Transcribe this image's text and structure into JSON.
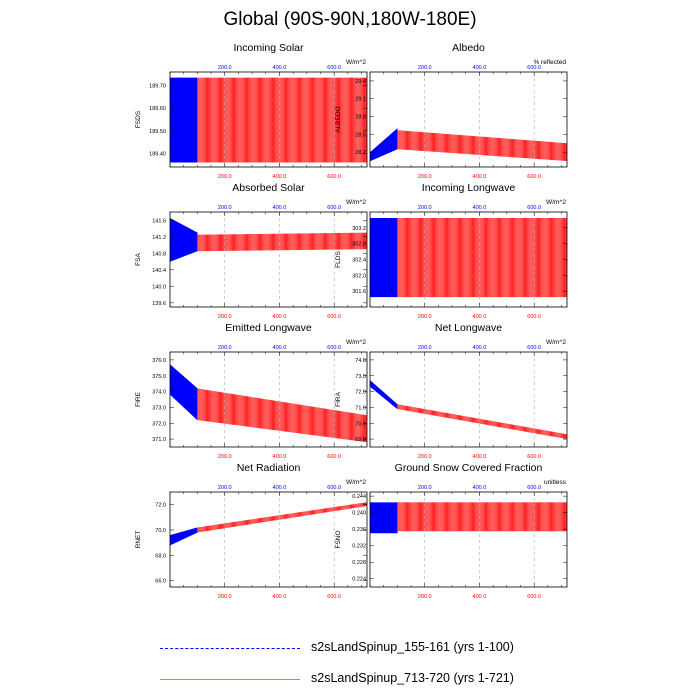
{
  "page": {
    "title": "Global (90S-90N,180W-180E)"
  },
  "legend": [
    {
      "label": "s2sLandSpinup_155-161 (yrs 1-100)",
      "color": "#0000ff",
      "style": "dashed"
    },
    {
      "label": "s2sLandSpinup_713-720 (yrs 1-721)",
      "color": "#ff0000",
      "style": "solid"
    }
  ],
  "chart_data": [
    {
      "type": "line",
      "title": "Incoming Solar",
      "ylabel": "FSDS",
      "units": "W/m^2",
      "xlim": [
        0,
        720
      ],
      "xticks": [
        200,
        400,
        600
      ],
      "xtick_labels": [
        "200.0",
        "400.0",
        "600.0"
      ],
      "ylim": [
        189.34,
        189.76
      ],
      "yticks": [
        189.4,
        189.5,
        189.6,
        189.7
      ],
      "ytick_labels": [
        "189.40",
        "189.50",
        "189.60",
        "189.70"
      ],
      "series": [
        {
          "color": "#0000ff",
          "x_range": [
            1,
            100
          ],
          "band_low": [
            189.36,
            189.36
          ],
          "band_high": [
            189.735,
            189.735
          ]
        },
        {
          "color": "#ff0000",
          "x_range": [
            100,
            721
          ],
          "band_low": [
            189.36,
            189.36
          ],
          "band_high": [
            189.735,
            189.735
          ]
        }
      ]
    },
    {
      "type": "line",
      "title": "Albedo",
      "ylabel": "ALBEDO",
      "units": "% reflected",
      "xlim": [
        0,
        720
      ],
      "xticks": [
        200,
        400,
        600
      ],
      "xtick_labels": [
        "200.0",
        "400.0",
        "600.0"
      ],
      "ylim": [
        27.95,
        29.55
      ],
      "yticks": [
        28.2,
        28.5,
        28.8,
        29.1,
        29.4
      ],
      "ytick_labels": [
        "28.2",
        "28.5",
        "28.8",
        "29.1",
        "29.4"
      ],
      "series": [
        {
          "color": "#0000ff",
          "x_range": [
            1,
            100
          ],
          "band_low": [
            28.05,
            28.25
          ],
          "band_high": [
            28.2,
            28.6
          ]
        },
        {
          "color": "#ff0000",
          "x_range": [
            100,
            721
          ],
          "band_low": [
            28.25,
            28.05
          ],
          "band_high": [
            28.57,
            28.35
          ]
        }
      ]
    },
    {
      "type": "line",
      "title": "Absorbed Solar",
      "ylabel": "FSA",
      "units": "W/m^2",
      "xlim": [
        0,
        720
      ],
      "xticks": [
        200,
        400,
        600
      ],
      "xtick_labels": [
        "200.0",
        "400.0",
        "600.0"
      ],
      "ylim": [
        139.5,
        141.8
      ],
      "yticks": [
        139.6,
        140.0,
        140.4,
        140.8,
        141.2,
        141.6
      ],
      "ytick_labels": [
        "139.6",
        "140.0",
        "140.4",
        "140.8",
        "141.2",
        "141.6"
      ],
      "series": [
        {
          "color": "#0000ff",
          "x_range": [
            1,
            100
          ],
          "band_low": [
            140.6,
            140.85
          ],
          "band_high": [
            141.65,
            141.3
          ]
        },
        {
          "color": "#ff0000",
          "x_range": [
            100,
            721
          ],
          "band_low": [
            140.85,
            140.9
          ],
          "band_high": [
            141.25,
            141.3
          ]
        }
      ]
    },
    {
      "type": "line",
      "title": "Incoming Longwave",
      "ylabel": "FLDS",
      "units": "W/m^2",
      "xlim": [
        0,
        720
      ],
      "xticks": [
        200,
        400,
        600
      ],
      "xtick_labels": [
        "200.0",
        "400.0",
        "600.0"
      ],
      "ylim": [
        301.2,
        303.6
      ],
      "yticks": [
        301.6,
        302.0,
        302.4,
        302.8,
        303.2
      ],
      "ytick_labels": [
        "301.6",
        "302.0",
        "302.4",
        "302.8",
        "303.2"
      ],
      "series": [
        {
          "color": "#0000ff",
          "x_range": [
            1,
            100
          ],
          "band_low": [
            301.45,
            301.45
          ],
          "band_high": [
            303.45,
            303.45
          ]
        },
        {
          "color": "#ff0000",
          "x_range": [
            100,
            721
          ],
          "band_low": [
            301.45,
            301.45
          ],
          "band_high": [
            303.45,
            303.45
          ]
        }
      ]
    },
    {
      "type": "line",
      "title": "Emitted Longwave",
      "ylabel": "FIRE",
      "units": "W/m^2",
      "xlim": [
        0,
        720
      ],
      "xticks": [
        200,
        400,
        600
      ],
      "xtick_labels": [
        "200.0",
        "400.0",
        "600.0"
      ],
      "ylim": [
        370.5,
        376.5
      ],
      "yticks": [
        371.0,
        372.0,
        373.0,
        374.0,
        375.0,
        376.0
      ],
      "ytick_labels": [
        "371.0",
        "372.0",
        "373.0",
        "374.0",
        "375.0",
        "376.0"
      ],
      "series": [
        {
          "color": "#0000ff",
          "x_range": [
            1,
            100
          ],
          "band_low": [
            373.8,
            372.2
          ],
          "band_high": [
            375.7,
            374.2
          ]
        },
        {
          "color": "#ff0000",
          "x_range": [
            100,
            721
          ],
          "band_low": [
            372.2,
            370.8
          ],
          "band_high": [
            374.2,
            372.5
          ]
        }
      ]
    },
    {
      "type": "line",
      "title": "Net Longwave",
      "ylabel": "FIRA",
      "units": "W/m^2",
      "xlim": [
        0,
        720
      ],
      "xticks": [
        200,
        400,
        600
      ],
      "xtick_labels": [
        "200.0",
        "400.0",
        "600.0"
      ],
      "ylim": [
        68.5,
        74.5
      ],
      "yticks": [
        69.0,
        70.0,
        71.0,
        72.0,
        73.0,
        74.0
      ],
      "ytick_labels": [
        "69.0",
        "70.0",
        "71.0",
        "72.0",
        "73.0",
        "74.0"
      ],
      "series": [
        {
          "color": "#0000ff",
          "x_range": [
            1,
            100
          ],
          "band_low": [
            72.3,
            70.9
          ],
          "band_high": [
            72.7,
            71.2
          ]
        },
        {
          "color": "#ff0000",
          "x_range": [
            100,
            721
          ],
          "band_low": [
            70.9,
            69.0
          ],
          "band_high": [
            71.2,
            69.3
          ]
        }
      ]
    },
    {
      "type": "line",
      "title": "Net Radiation",
      "ylabel": "RNET",
      "units": "W/m^2",
      "xlim": [
        0,
        720
      ],
      "xticks": [
        200,
        400,
        600
      ],
      "xtick_labels": [
        "200.0",
        "400.0",
        "600.0"
      ],
      "ylim": [
        65.5,
        73.0
      ],
      "yticks": [
        66.0,
        68.0,
        70.0,
        72.0
      ],
      "ytick_labels": [
        "66.0",
        "68.0",
        "70.0",
        "72.0"
      ],
      "series": [
        {
          "color": "#0000ff",
          "x_range": [
            1,
            100
          ],
          "band_low": [
            68.8,
            69.8
          ],
          "band_high": [
            69.6,
            70.2
          ]
        },
        {
          "color": "#ff0000",
          "x_range": [
            100,
            721
          ],
          "band_low": [
            69.8,
            71.9
          ],
          "band_high": [
            70.2,
            72.2
          ]
        }
      ]
    },
    {
      "type": "line",
      "title": "Ground Snow Covered Fraction",
      "ylabel": "FSNO",
      "units": "unitless",
      "xlim": [
        0,
        720
      ],
      "xticks": [
        200,
        400,
        600
      ],
      "xtick_labels": [
        "200.0",
        "400.0",
        "600.0"
      ],
      "ylim": [
        0.222,
        0.245
      ],
      "yticks": [
        0.224,
        0.228,
        0.232,
        0.236,
        0.24,
        0.244
      ],
      "ytick_labels": [
        "0.224",
        "0.228",
        "0.232",
        "0.236",
        "0.240",
        "0.244"
      ],
      "series": [
        {
          "color": "#0000ff",
          "x_range": [
            1,
            100
          ],
          "band_low": [
            0.235,
            0.235
          ],
          "band_high": [
            0.2425,
            0.2425
          ]
        },
        {
          "color": "#ff0000",
          "x_range": [
            100,
            721
          ],
          "band_low": [
            0.2355,
            0.2355
          ],
          "band_high": [
            0.2425,
            0.2425
          ]
        }
      ]
    }
  ]
}
